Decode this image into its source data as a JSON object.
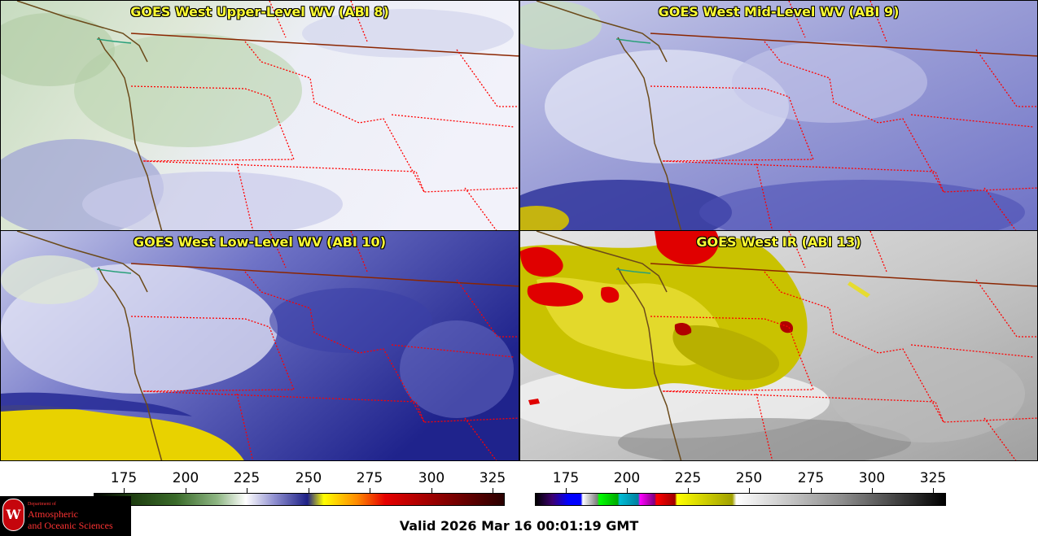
{
  "panels": [
    {
      "title": "GOES West Upper-Level WV (ABI 8)"
    },
    {
      "title": "GOES West Mid-Level WV (ABI 9)"
    },
    {
      "title": "GOES West Low-Level WV (ABI 10)"
    },
    {
      "title": "GOES West IR (ABI 13)"
    }
  ],
  "colorbars": {
    "left": {
      "ticks": [
        "175",
        "200",
        "225",
        "250",
        "275",
        "300",
        "325"
      ]
    },
    "right": {
      "ticks": [
        "175",
        "200",
        "225",
        "250",
        "275",
        "300",
        "325"
      ]
    }
  },
  "logo": {
    "seal_letter": "W",
    "line1": "Department of",
    "line2": "Atmospheric",
    "line3": "and Oceanic Sciences"
  },
  "valid_time": "Valid 2026 Mar 16 00:01:19 GMT",
  "colors": {
    "title_yellow": "#ffff33",
    "state_border": "#ff0000",
    "coast_line": "#6b4a1a",
    "logo_red": "#c5050c"
  }
}
